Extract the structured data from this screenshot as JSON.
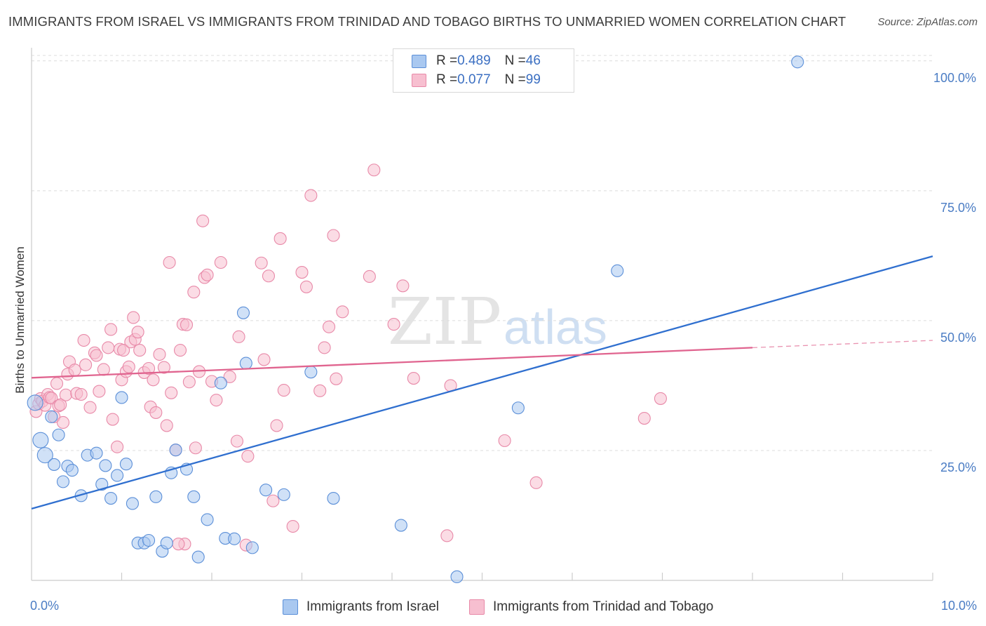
{
  "header": {
    "title": "IMMIGRANTS FROM ISRAEL VS IMMIGRANTS FROM TRINIDAD AND TOBAGO BIRTHS TO UNMARRIED WOMEN CORRELATION CHART",
    "source": "Source: ZipAtlas.com"
  },
  "watermark": {
    "zip": "ZIP",
    "atlas": "atlas"
  },
  "legend": {
    "israel": {
      "r_label": "R = ",
      "r_value": "0.489",
      "n_label": "N = ",
      "n_value": "46"
    },
    "trinidad": {
      "r_label": "R = ",
      "r_value": "0.077",
      "n_label": "N = ",
      "n_value": "99"
    }
  },
  "bottom_legend": {
    "israel": "Immigrants from Israel",
    "trinidad": "Immigrants from Trinidad and Tobago"
  },
  "colors": {
    "israel_fill": "#a9c8f0",
    "israel_stroke": "#5b8fd8",
    "israel_line": "#2f6fcf",
    "trinidad_fill": "#f7bfd0",
    "trinidad_stroke": "#e889a8",
    "trinidad_line": "#e0648f",
    "tick_text": "#4a7cc4"
  },
  "chart_data": {
    "type": "scatter",
    "title": "IMMIGRANTS FROM ISRAEL VS IMMIGRANTS FROM TRINIDAD AND TOBAGO BIRTHS TO UNMARRIED WOMEN CORRELATION CHART",
    "xlabel": "",
    "ylabel": "Births to Unmarried Women",
    "xlim": [
      0,
      10
    ],
    "ylim": [
      0,
      102
    ],
    "x_tick_labels": [
      "0.0%",
      "10.0%"
    ],
    "y_ticks": [
      25,
      50,
      75,
      100
    ],
    "y_tick_labels": [
      "25.0%",
      "50.0%",
      "75.0%",
      "100.0%"
    ],
    "grid": true,
    "legend_position": "top-center",
    "series": [
      {
        "name": "Immigrants from Israel",
        "r": 0.489,
        "n": 46,
        "trend": {
          "x": [
            0,
            10
          ],
          "y": [
            13.8,
            62.4
          ]
        },
        "points": [
          {
            "x": 0.04,
            "y": 34.2
          },
          {
            "x": 0.1,
            "y": 27.0
          },
          {
            "x": 0.15,
            "y": 24.1
          },
          {
            "x": 0.22,
            "y": 31.5
          },
          {
            "x": 0.25,
            "y": 22.3
          },
          {
            "x": 0.3,
            "y": 28.0
          },
          {
            "x": 0.35,
            "y": 19.0
          },
          {
            "x": 0.4,
            "y": 22.0
          },
          {
            "x": 0.45,
            "y": 21.2
          },
          {
            "x": 0.55,
            "y": 16.3
          },
          {
            "x": 0.62,
            "y": 24.1
          },
          {
            "x": 0.72,
            "y": 24.5
          },
          {
            "x": 0.78,
            "y": 18.5
          },
          {
            "x": 0.82,
            "y": 22.1
          },
          {
            "x": 0.88,
            "y": 15.8
          },
          {
            "x": 0.95,
            "y": 20.2
          },
          {
            "x": 1.0,
            "y": 35.2
          },
          {
            "x": 1.05,
            "y": 22.4
          },
          {
            "x": 1.12,
            "y": 14.8
          },
          {
            "x": 1.18,
            "y": 7.2
          },
          {
            "x": 1.25,
            "y": 7.2
          },
          {
            "x": 1.3,
            "y": 7.7
          },
          {
            "x": 1.38,
            "y": 16.1
          },
          {
            "x": 1.45,
            "y": 5.6
          },
          {
            "x": 1.5,
            "y": 7.2
          },
          {
            "x": 1.55,
            "y": 20.7
          },
          {
            "x": 1.6,
            "y": 25.1
          },
          {
            "x": 1.72,
            "y": 21.4
          },
          {
            "x": 1.8,
            "y": 16.1
          },
          {
            "x": 1.85,
            "y": 4.5
          },
          {
            "x": 1.95,
            "y": 11.7
          },
          {
            "x": 2.1,
            "y": 38.0
          },
          {
            "x": 2.15,
            "y": 8.1
          },
          {
            "x": 2.25,
            "y": 8.0
          },
          {
            "x": 2.35,
            "y": 51.5
          },
          {
            "x": 2.38,
            "y": 41.8
          },
          {
            "x": 2.45,
            "y": 6.3
          },
          {
            "x": 2.6,
            "y": 17.4
          },
          {
            "x": 2.8,
            "y": 16.5
          },
          {
            "x": 3.1,
            "y": 40.1
          },
          {
            "x": 3.35,
            "y": 15.8
          },
          {
            "x": 4.1,
            "y": 10.6
          },
          {
            "x": 4.72,
            "y": 0.7
          },
          {
            "x": 5.4,
            "y": 33.2
          },
          {
            "x": 6.5,
            "y": 59.6
          },
          {
            "x": 8.5,
            "y": 99.8
          }
        ]
      },
      {
        "name": "Immigrants from Trinidad and Tobago",
        "r": 0.077,
        "n": 99,
        "trend": {
          "x": [
            0,
            8
          ],
          "y": [
            39.0,
            44.8
          ],
          "dashed_to": {
            "x": 10,
            "y": 46.2
          }
        },
        "points": [
          {
            "x": 0.05,
            "y": 32.5
          },
          {
            "x": 0.08,
            "y": 34.0
          },
          {
            "x": 0.1,
            "y": 35.0
          },
          {
            "x": 0.12,
            "y": 34.5
          },
          {
            "x": 0.15,
            "y": 33.7
          },
          {
            "x": 0.18,
            "y": 35.8
          },
          {
            "x": 0.2,
            "y": 35.2
          },
          {
            "x": 0.22,
            "y": 35.1
          },
          {
            "x": 0.25,
            "y": 31.5
          },
          {
            "x": 0.28,
            "y": 37.9
          },
          {
            "x": 0.3,
            "y": 33.6
          },
          {
            "x": 0.32,
            "y": 33.8
          },
          {
            "x": 0.35,
            "y": 30.4
          },
          {
            "x": 0.38,
            "y": 35.7
          },
          {
            "x": 0.4,
            "y": 39.7
          },
          {
            "x": 0.42,
            "y": 42.1
          },
          {
            "x": 0.48,
            "y": 40.5
          },
          {
            "x": 0.5,
            "y": 36.0
          },
          {
            "x": 0.55,
            "y": 35.8
          },
          {
            "x": 0.58,
            "y": 46.2
          },
          {
            "x": 0.6,
            "y": 41.5
          },
          {
            "x": 0.65,
            "y": 33.3
          },
          {
            "x": 0.7,
            "y": 43.8
          },
          {
            "x": 0.72,
            "y": 43.3
          },
          {
            "x": 0.75,
            "y": 36.4
          },
          {
            "x": 0.8,
            "y": 40.6
          },
          {
            "x": 0.85,
            "y": 44.8
          },
          {
            "x": 0.88,
            "y": 48.3
          },
          {
            "x": 0.9,
            "y": 31.0
          },
          {
            "x": 0.95,
            "y": 25.7
          },
          {
            "x": 0.98,
            "y": 44.5
          },
          {
            "x": 1.0,
            "y": 38.6
          },
          {
            "x": 1.02,
            "y": 44.3
          },
          {
            "x": 1.05,
            "y": 40.2
          },
          {
            "x": 1.08,
            "y": 41.1
          },
          {
            "x": 1.1,
            "y": 45.9
          },
          {
            "x": 1.13,
            "y": 50.6
          },
          {
            "x": 1.15,
            "y": 46.4
          },
          {
            "x": 1.18,
            "y": 47.8
          },
          {
            "x": 1.2,
            "y": 44.3
          },
          {
            "x": 1.25,
            "y": 40.0
          },
          {
            "x": 1.3,
            "y": 40.8
          },
          {
            "x": 1.32,
            "y": 33.4
          },
          {
            "x": 1.35,
            "y": 38.6
          },
          {
            "x": 1.38,
            "y": 32.3
          },
          {
            "x": 1.42,
            "y": 43.5
          },
          {
            "x": 1.47,
            "y": 41.0
          },
          {
            "x": 1.5,
            "y": 29.8
          },
          {
            "x": 1.53,
            "y": 61.2
          },
          {
            "x": 1.55,
            "y": 36.1
          },
          {
            "x": 1.6,
            "y": 25.1
          },
          {
            "x": 1.65,
            "y": 44.3
          },
          {
            "x": 1.68,
            "y": 49.3
          },
          {
            "x": 1.7,
            "y": 7.0
          },
          {
            "x": 1.72,
            "y": 49.2
          },
          {
            "x": 1.75,
            "y": 38.2
          },
          {
            "x": 1.8,
            "y": 55.5
          },
          {
            "x": 1.82,
            "y": 25.5
          },
          {
            "x": 1.86,
            "y": 40.2
          },
          {
            "x": 1.9,
            "y": 69.2
          },
          {
            "x": 1.92,
            "y": 58.3
          },
          {
            "x": 1.95,
            "y": 58.8
          },
          {
            "x": 2.0,
            "y": 38.3
          },
          {
            "x": 2.05,
            "y": 34.7
          },
          {
            "x": 2.1,
            "y": 61.2
          },
          {
            "x": 2.2,
            "y": 39.2
          },
          {
            "x": 2.28,
            "y": 26.8
          },
          {
            "x": 2.3,
            "y": 46.9
          },
          {
            "x": 2.4,
            "y": 23.9
          },
          {
            "x": 2.55,
            "y": 61.1
          },
          {
            "x": 2.58,
            "y": 42.5
          },
          {
            "x": 2.63,
            "y": 58.6
          },
          {
            "x": 2.68,
            "y": 15.3
          },
          {
            "x": 2.72,
            "y": 29.8
          },
          {
            "x": 2.76,
            "y": 65.8
          },
          {
            "x": 2.8,
            "y": 36.6
          },
          {
            "x": 2.9,
            "y": 10.4
          },
          {
            "x": 3.0,
            "y": 59.3
          },
          {
            "x": 3.05,
            "y": 56.5
          },
          {
            "x": 3.1,
            "y": 74.1
          },
          {
            "x": 3.2,
            "y": 36.5
          },
          {
            "x": 3.25,
            "y": 44.8
          },
          {
            "x": 3.3,
            "y": 48.8
          },
          {
            "x": 3.35,
            "y": 66.4
          },
          {
            "x": 3.38,
            "y": 38.8
          },
          {
            "x": 3.45,
            "y": 51.7
          },
          {
            "x": 3.75,
            "y": 58.5
          },
          {
            "x": 3.8,
            "y": 79.0
          },
          {
            "x": 4.02,
            "y": 49.3
          },
          {
            "x": 4.12,
            "y": 56.7
          },
          {
            "x": 4.24,
            "y": 38.9
          },
          {
            "x": 4.61,
            "y": 8.6
          },
          {
            "x": 4.65,
            "y": 37.5
          },
          {
            "x": 5.25,
            "y": 26.9
          },
          {
            "x": 5.6,
            "y": 18.8
          },
          {
            "x": 6.8,
            "y": 31.2
          },
          {
            "x": 6.98,
            "y": 35.0
          },
          {
            "x": 2.38,
            "y": 6.8
          },
          {
            "x": 1.63,
            "y": 7.0
          }
        ]
      }
    ]
  }
}
